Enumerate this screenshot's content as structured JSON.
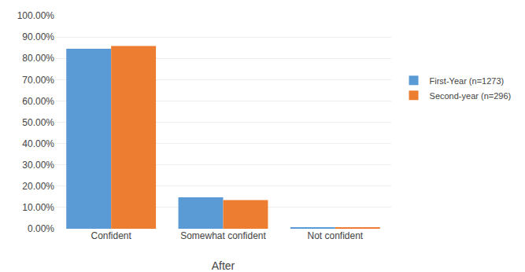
{
  "chart_data": {
    "type": "bar",
    "categories": [
      "Confident",
      "Somewhat confident",
      "Not confident"
    ],
    "series": [
      {
        "name": "First-Year (n=1273)",
        "color": "#5B9BD5",
        "values": [
          0.845,
          0.148,
          0.007
        ]
      },
      {
        "name": "Second-year (n=296)",
        "color": "#ED7D31",
        "values": [
          0.858,
          0.135,
          0.007
        ]
      }
    ],
    "xlabel": "After",
    "ylim": [
      0,
      1.0
    ],
    "yticks": [
      {
        "value": 0.0,
        "label": "0.00%"
      },
      {
        "value": 0.1,
        "label": "10.00%"
      },
      {
        "value": 0.2,
        "label": "20.00%"
      },
      {
        "value": 0.3,
        "label": "30.00%"
      },
      {
        "value": 0.4,
        "label": "40.00%"
      },
      {
        "value": 0.5,
        "label": "50.00%"
      },
      {
        "value": 0.6,
        "label": "60.00%"
      },
      {
        "value": 0.7,
        "label": "70.00%"
      },
      {
        "value": 0.8,
        "label": "80.00%"
      },
      {
        "value": 0.9,
        "label": "90.00%"
      },
      {
        "value": 1.0,
        "label": "100.00%"
      }
    ],
    "grid": true,
    "legend": "right"
  }
}
